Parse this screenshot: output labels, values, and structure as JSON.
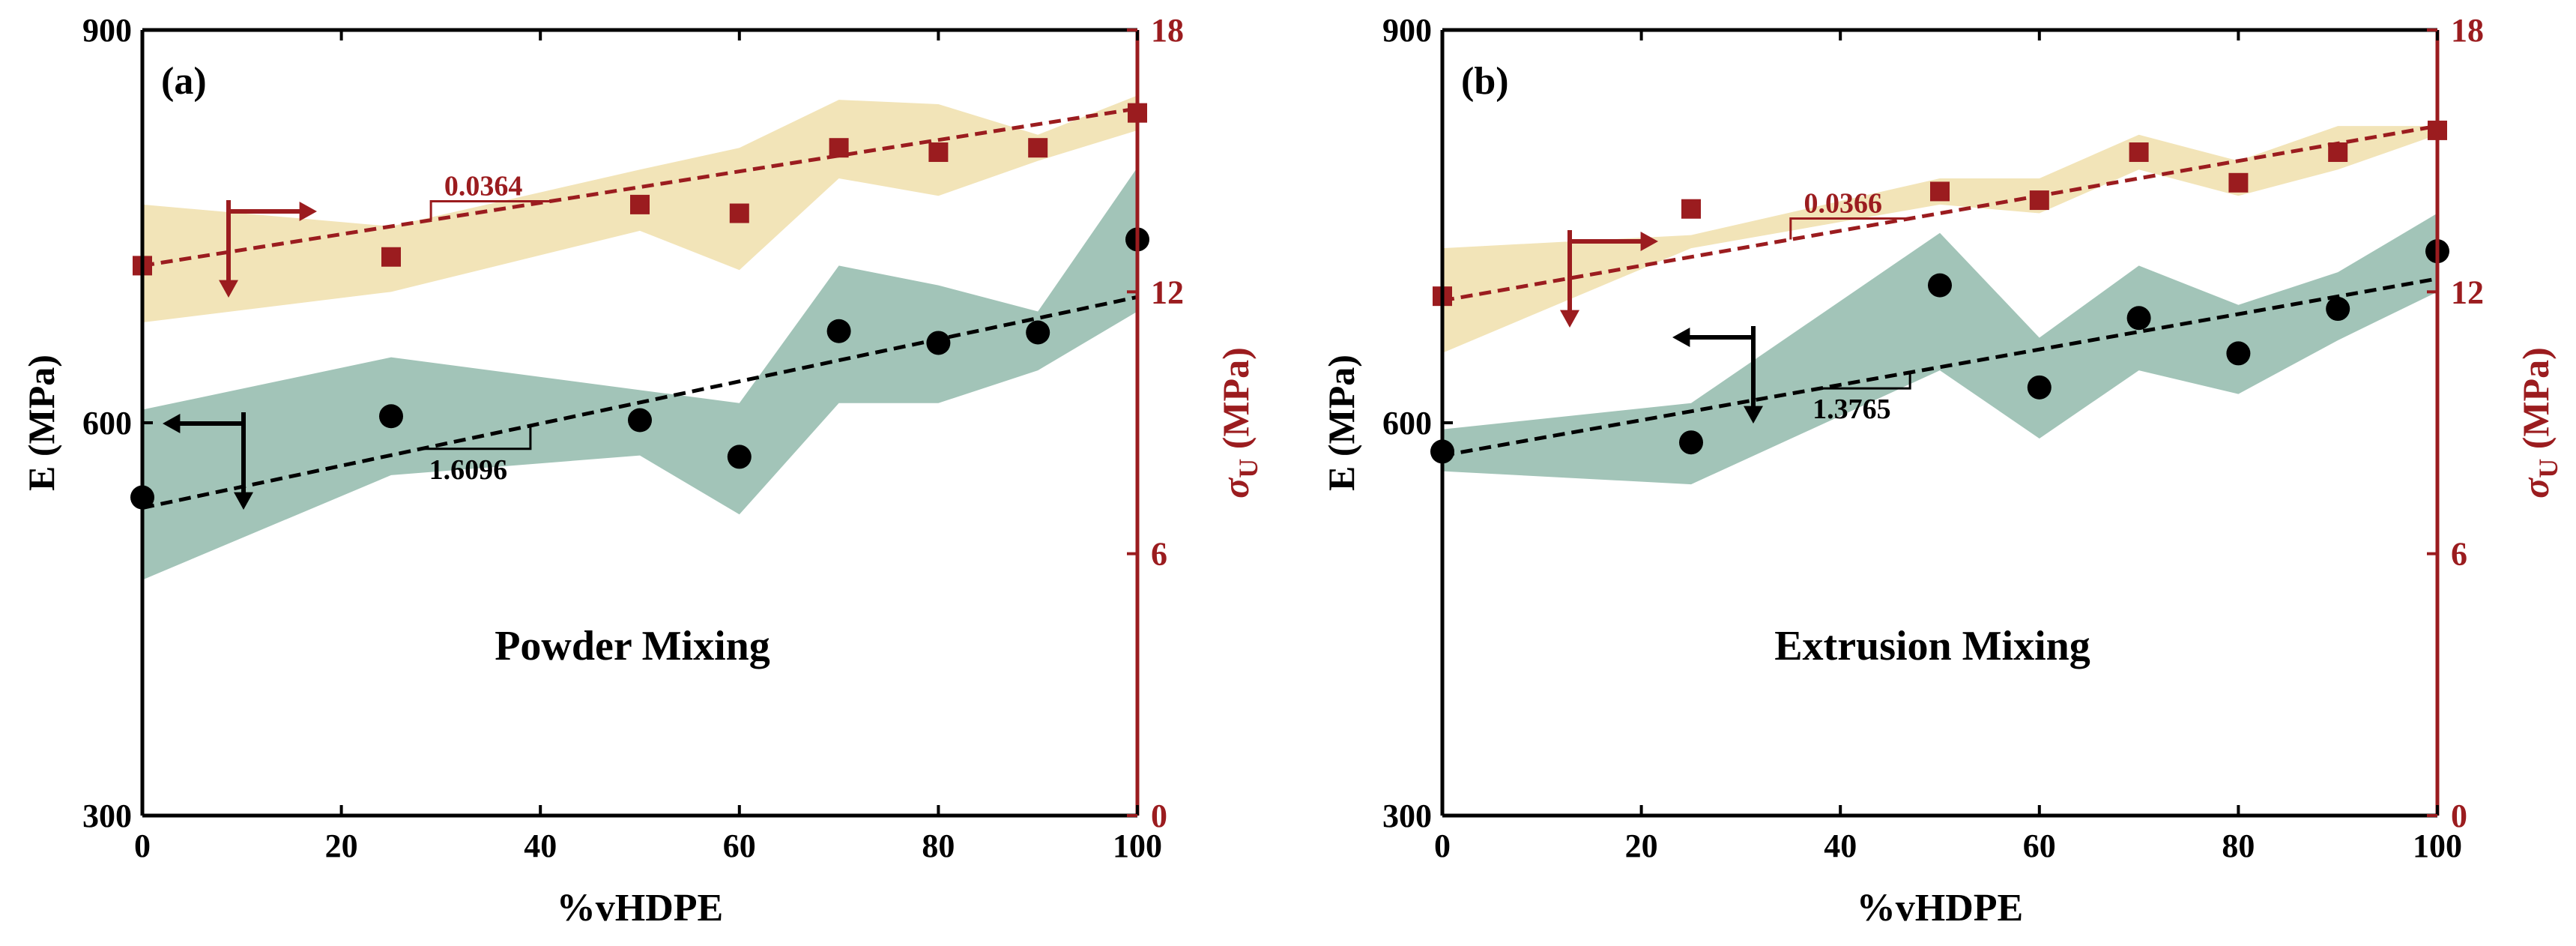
{
  "colors": {
    "modulus": "#000000",
    "strength": "#9b1c1f",
    "modulus_band": "#a2c4b8",
    "strength_band": "#f2e4b8"
  },
  "chart_data": [
    {
      "type": "scatter",
      "panel_label": "(a)",
      "annotation": "Powder Mixing",
      "xlabel": "%vHDPE",
      "ylabel_left": "E (MPa)",
      "ylabel_right_symbol": "σ",
      "ylabel_right_subscript": "U",
      "ylabel_right_unit": "(MPa)",
      "xlim": [
        0,
        100
      ],
      "ylim_left": [
        300,
        900
      ],
      "ylim_right": [
        0,
        18
      ],
      "xticks": [
        "0",
        "20",
        "40",
        "60",
        "80",
        "100"
      ],
      "yticks_left": [
        "300",
        "600",
        "900"
      ],
      "yticks_right": [
        "0",
        "6",
        "12",
        "18"
      ],
      "grid": false,
      "series": [
        {
          "axis": "left",
          "marker": "circle",
          "x": [
            0,
            25,
            50,
            60,
            70,
            80,
            90,
            100
          ],
          "y": [
            543,
            605,
            602,
            574,
            670,
            661,
            669,
            740
          ],
          "band_upper": [
            610,
            650,
            625,
            615,
            720,
            705,
            685,
            795
          ],
          "band_lower": [
            480,
            560,
            575,
            530,
            615,
            615,
            640,
            685
          ],
          "fit": {
            "x": [
              0,
              100
            ],
            "y": [
              535,
              696
            ]
          },
          "slope_label": "1.6096"
        },
        {
          "axis": "right",
          "marker": "square",
          "x": [
            0,
            25,
            50,
            60,
            70,
            80,
            90,
            100
          ],
          "y": [
            12.6,
            12.8,
            14.0,
            13.8,
            15.3,
            15.2,
            15.3,
            16.1
          ],
          "band_upper": [
            14.0,
            13.5,
            14.8,
            15.3,
            16.4,
            16.3,
            15.6,
            16.5
          ],
          "band_lower": [
            11.3,
            12.0,
            13.4,
            12.5,
            14.6,
            14.2,
            15.0,
            15.7
          ],
          "fit": {
            "x": [
              0,
              100
            ],
            "y": [
              12.6,
              16.2
            ]
          },
          "slope_label": "0.0364"
        }
      ]
    },
    {
      "type": "scatter",
      "panel_label": "(b)",
      "annotation": "Extrusion Mixing",
      "xlabel": "%vHDPE",
      "ylabel_left": "E (MPa)",
      "ylabel_right_symbol": "σ",
      "ylabel_right_subscript": "U",
      "ylabel_right_unit": "(MPa)",
      "xlim": [
        0,
        100
      ],
      "ylim_left": [
        300,
        900
      ],
      "ylim_right": [
        0,
        18
      ],
      "xticks": [
        "0",
        "20",
        "40",
        "60",
        "80",
        "100"
      ],
      "yticks_left": [
        "300",
        "600",
        "900"
      ],
      "yticks_right": [
        "0",
        "6",
        "12",
        "18"
      ],
      "grid": false,
      "series": [
        {
          "axis": "left",
          "marker": "circle",
          "x": [
            0,
            25,
            50,
            60,
            70,
            80,
            90,
            100
          ],
          "y": [
            578,
            585,
            705,
            627,
            680,
            653,
            687,
            731
          ],
          "band_upper": [
            595,
            615,
            745,
            665,
            720,
            690,
            715,
            760
          ],
          "band_lower": [
            563,
            553,
            640,
            588,
            640,
            622,
            663,
            700
          ],
          "fit": {
            "x": [
              0,
              100
            ],
            "y": [
              575,
              710
            ]
          },
          "slope_label": "1.3765"
        },
        {
          "axis": "right",
          "marker": "square",
          "x": [
            0,
            25,
            50,
            60,
            70,
            80,
            90,
            100
          ],
          "y": [
            11.9,
            13.9,
            14.3,
            14.1,
            15.2,
            14.5,
            15.2,
            15.7
          ],
          "band_upper": [
            13.0,
            13.3,
            14.6,
            14.6,
            15.6,
            15.0,
            15.8,
            15.8
          ],
          "band_lower": [
            10.6,
            13.0,
            14.0,
            13.8,
            14.8,
            14.2,
            14.8,
            15.6
          ],
          "fit": {
            "x": [
              0,
              100
            ],
            "y": [
              11.8,
              15.8
            ]
          },
          "slope_label": "0.0366"
        }
      ]
    }
  ]
}
